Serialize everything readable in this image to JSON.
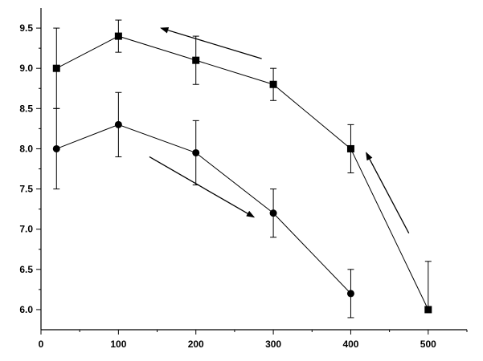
{
  "chart_data": {
    "type": "line",
    "title": "",
    "xlabel": "",
    "ylabel": "",
    "xlim": [
      0,
      550
    ],
    "ylim": [
      5.75,
      9.75
    ],
    "x_ticks": [
      "0",
      "100",
      "200",
      "300",
      "400",
      "500"
    ],
    "y_ticks": [
      "6.0",
      "6.5",
      "7.0",
      "7.5",
      "8.0",
      "8.5",
      "9.0",
      "9.5"
    ],
    "grid": false,
    "series": [
      {
        "marker": "square",
        "x": [
          20,
          100,
          200,
          300,
          400,
          500
        ],
        "y": [
          9.0,
          9.4,
          9.1,
          8.8,
          8.0,
          6.0
        ],
        "err_low": [
          8.5,
          9.2,
          8.8,
          8.6,
          7.7,
          6.0
        ],
        "err_high": [
          9.5,
          9.6,
          9.4,
          9.0,
          8.3,
          6.6
        ]
      },
      {
        "marker": "circle",
        "x": [
          20,
          100,
          200,
          300,
          400
        ],
        "y": [
          8.0,
          8.3,
          7.95,
          7.2,
          6.2
        ],
        "err_low": [
          7.5,
          7.9,
          7.55,
          6.9,
          5.9
        ],
        "err_high": [
          8.5,
          8.7,
          8.35,
          7.5,
          6.5
        ]
      }
    ],
    "annotations": [
      {
        "type": "arrow",
        "from": [
          285,
          9.12
        ],
        "to": [
          155,
          9.5
        ]
      },
      {
        "type": "arrow",
        "from": [
          140,
          7.9
        ],
        "to": [
          275,
          7.15
        ]
      },
      {
        "type": "arrow",
        "from": [
          475,
          6.95
        ],
        "to": [
          420,
          7.95
        ]
      }
    ]
  }
}
